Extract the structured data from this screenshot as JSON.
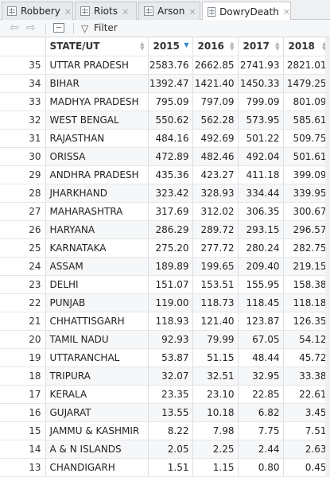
{
  "tabs": [
    {
      "label": "Robbery",
      "close": "×",
      "active": false
    },
    {
      "label": "Riots",
      "close": "×",
      "active": false
    },
    {
      "label": "Arson",
      "close": "×",
      "active": false
    },
    {
      "label": "DowryDeath",
      "close": "×",
      "active": true
    }
  ],
  "toolbar": {
    "back_icon": "arrow-left-icon",
    "forward_icon": "arrow-right-icon",
    "show_icon": "show-in-window-icon",
    "filter_icon": "funnel-icon",
    "filter_label": "Filter"
  },
  "table": {
    "sorted_column": "2015",
    "sort_direction": "descending",
    "columns": [
      "",
      "STATE/UT",
      "2015",
      "2016",
      "2017",
      "2018"
    ],
    "rows": [
      {
        "idx": "35",
        "state": "UTTAR PRADESH",
        "v2015": "2583.76",
        "v2016": "2662.85",
        "v2017": "2741.93",
        "v2018": "2821.01"
      },
      {
        "idx": "34",
        "state": "BIHAR",
        "v2015": "1392.47",
        "v2016": "1421.40",
        "v2017": "1450.33",
        "v2018": "1479.25"
      },
      {
        "idx": "33",
        "state": "MADHYA PRADESH",
        "v2015": "795.09",
        "v2016": "797.09",
        "v2017": "799.09",
        "v2018": "801.09"
      },
      {
        "idx": "32",
        "state": "WEST BENGAL",
        "v2015": "550.62",
        "v2016": "562.28",
        "v2017": "573.95",
        "v2018": "585.61"
      },
      {
        "idx": "31",
        "state": "RAJASTHAN",
        "v2015": "484.16",
        "v2016": "492.69",
        "v2017": "501.22",
        "v2018": "509.75"
      },
      {
        "idx": "30",
        "state": "ORISSA",
        "v2015": "472.89",
        "v2016": "482.46",
        "v2017": "492.04",
        "v2018": "501.61"
      },
      {
        "idx": "29",
        "state": "ANDHRA PRADESH",
        "v2015": "435.36",
        "v2016": "423.27",
        "v2017": "411.18",
        "v2018": "399.09"
      },
      {
        "idx": "28",
        "state": "JHARKHAND",
        "v2015": "323.42",
        "v2016": "328.93",
        "v2017": "334.44",
        "v2018": "339.95"
      },
      {
        "idx": "27",
        "state": "MAHARASHTRA",
        "v2015": "317.69",
        "v2016": "312.02",
        "v2017": "306.35",
        "v2018": "300.67"
      },
      {
        "idx": "26",
        "state": "HARYANA",
        "v2015": "286.29",
        "v2016": "289.72",
        "v2017": "293.15",
        "v2018": "296.57"
      },
      {
        "idx": "25",
        "state": "KARNATAKA",
        "v2015": "275.20",
        "v2016": "277.72",
        "v2017": "280.24",
        "v2018": "282.75"
      },
      {
        "idx": "24",
        "state": "ASSAM",
        "v2015": "189.89",
        "v2016": "199.65",
        "v2017": "209.40",
        "v2018": "219.15"
      },
      {
        "idx": "23",
        "state": "DELHI",
        "v2015": "151.07",
        "v2016": "153.51",
        "v2017": "155.95",
        "v2018": "158.38"
      },
      {
        "idx": "22",
        "state": "PUNJAB",
        "v2015": "119.00",
        "v2016": "118.73",
        "v2017": "118.45",
        "v2018": "118.18"
      },
      {
        "idx": "21",
        "state": "CHHATTISGARH",
        "v2015": "118.93",
        "v2016": "121.40",
        "v2017": "123.87",
        "v2018": "126.35"
      },
      {
        "idx": "20",
        "state": "TAMIL NADU",
        "v2015": "92.93",
        "v2016": "79.99",
        "v2017": "67.05",
        "v2018": "54.12"
      },
      {
        "idx": "19",
        "state": "UTTARANCHAL",
        "v2015": "53.87",
        "v2016": "51.15",
        "v2017": "48.44",
        "v2018": "45.72"
      },
      {
        "idx": "18",
        "state": "TRIPURA",
        "v2015": "32.07",
        "v2016": "32.51",
        "v2017": "32.95",
        "v2018": "33.38"
      },
      {
        "idx": "17",
        "state": "KERALA",
        "v2015": "23.35",
        "v2016": "23.10",
        "v2017": "22.85",
        "v2018": "22.61"
      },
      {
        "idx": "16",
        "state": "GUJARAT",
        "v2015": "13.55",
        "v2016": "10.18",
        "v2017": "6.82",
        "v2018": "3.45"
      },
      {
        "idx": "15",
        "state": "JAMMU & KASHMIR",
        "v2015": "8.22",
        "v2016": "7.98",
        "v2017": "7.75",
        "v2018": "7.51"
      },
      {
        "idx": "14",
        "state": "A & N ISLANDS",
        "v2015": "2.05",
        "v2016": "2.25",
        "v2017": "2.44",
        "v2018": "2.63"
      },
      {
        "idx": "13",
        "state": "CHANDIGARH",
        "v2015": "1.51",
        "v2016": "1.15",
        "v2017": "0.80",
        "v2018": "0.45"
      }
    ]
  },
  "colors": {
    "sort_active": "#2f86d4",
    "tab_bar": "#eef0f2",
    "alt_row": "#f6f7f9"
  }
}
